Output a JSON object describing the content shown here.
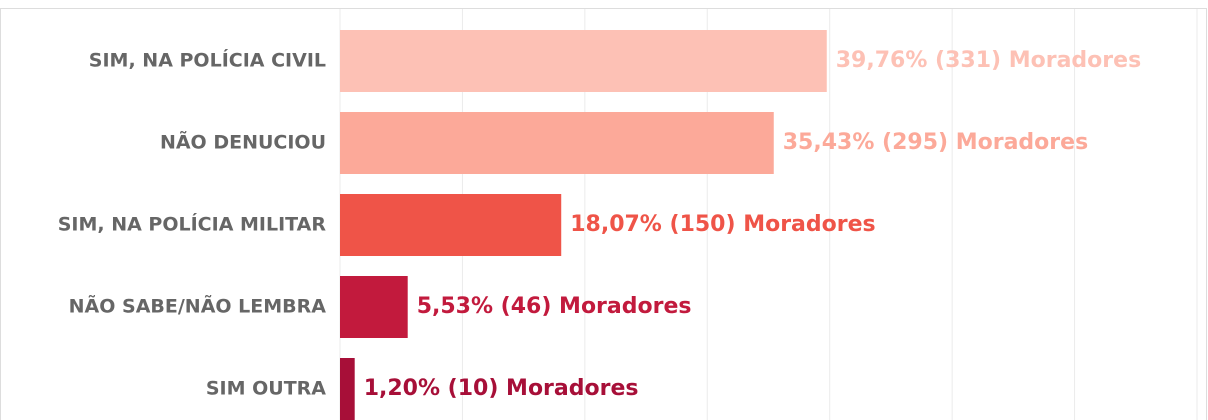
{
  "chart_data": {
    "type": "bar",
    "orientation": "horizontal",
    "categories": [
      "SIM, NA POLÍCIA CIVIL",
      "NÃO DENUCIOU",
      "SIM, NA POLÍCIA MILITAR",
      "NÃO SABE/NÃO LEMBRA",
      "SIM OUTRA"
    ],
    "values": [
      39.76,
      35.43,
      18.07,
      5.53,
      1.2
    ],
    "value_labels": [
      "39,76% (331) Moradores",
      "35,43% (295) Moradores",
      "18,07% (150) Moradores",
      "5,53% (46) Moradores",
      "1,20% (10) Moradores"
    ],
    "colors": [
      "#fdc1b5",
      "#fca999",
      "#ef5448",
      "#c21a3d",
      "#a70f38"
    ],
    "xlim": [
      0,
      70.9
    ],
    "xticks": [
      0,
      10,
      20,
      30,
      40,
      50,
      60,
      70
    ],
    "grid": true
  }
}
